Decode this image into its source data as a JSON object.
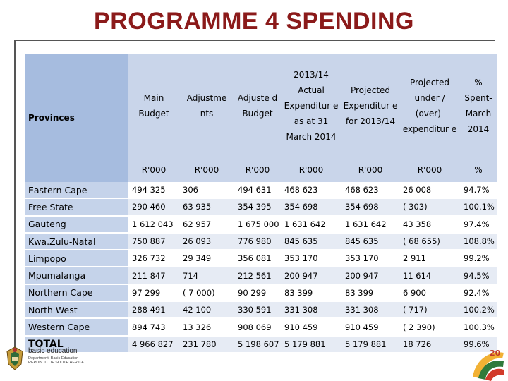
{
  "title": "PROGRAMME 4 SPENDING",
  "table": {
    "header": {
      "provinces": "Provinces",
      "year": "2013/14",
      "columns": [
        {
          "label": "Main Budget",
          "unit": "R'000"
        },
        {
          "label": "Adjustme nts",
          "unit": "R'000"
        },
        {
          "label": "Adjuste d Budget",
          "unit": "R'000"
        },
        {
          "label": "Actual Expenditur e as at 31 March 2014",
          "unit": "R'000"
        },
        {
          "label": "Projected Expenditur e for 2013/14",
          "unit": "R'000"
        },
        {
          "label": "Projected under / (over)- expenditur e",
          "unit": "R'000"
        },
        {
          "label": "% Spent- March 2014",
          "unit": "%"
        }
      ]
    },
    "rows": [
      {
        "province": "Eastern Cape",
        "values": [
          "494 325",
          "306",
          "494 631",
          "468 623",
          "468 623",
          "26 008",
          "94.7%"
        ]
      },
      {
        "province": "Free State",
        "values": [
          "290 460",
          "63 935",
          "354 395",
          "354 698",
          "354 698",
          "( 303)",
          "100.1%"
        ]
      },
      {
        "province": "Gauteng",
        "values": [
          "1 612 043",
          "62 957",
          "1 675 000",
          "1 631 642",
          "1 631 642",
          "43 358",
          "97.4%"
        ]
      },
      {
        "province": "Kwa.Zulu-Natal",
        "values": [
          "750 887",
          "26 093",
          "776 980",
          "845 635",
          "845 635",
          "( 68 655)",
          "108.8%"
        ]
      },
      {
        "province": "Limpopo",
        "values": [
          "326 732",
          "29 349",
          "356 081",
          "353 170",
          "353 170",
          "2 911",
          "99.2%"
        ]
      },
      {
        "province": "Mpumalanga",
        "values": [
          "211 847",
          "714",
          "212 561",
          "200 947",
          "200 947",
          "11 614",
          "94.5%"
        ]
      },
      {
        "province": "Northern Cape",
        "values": [
          "97 299",
          "( 7 000)",
          "90 299",
          "83 399",
          "83 399",
          "6 900",
          "92.4%"
        ]
      },
      {
        "province": "North West",
        "values": [
          "288 491",
          "42 100",
          "330 591",
          "331 308",
          "331 308",
          "( 717)",
          "100.2%"
        ]
      },
      {
        "province": "Western Cape",
        "values": [
          "894 743",
          "13 326",
          "908 069",
          "910 459",
          "910 459",
          "( 2 390)",
          "100.3%"
        ]
      }
    ],
    "total": {
      "province": "TOTAL",
      "values": [
        "4 966 827",
        "231 780",
        "5 198 607",
        "5 179 881",
        "5 179 881",
        "18 726",
        "99.6%"
      ]
    }
  },
  "logo": {
    "line1": "basic education",
    "line2": "Department: Basic Education REPUBLIC OF SOUTH AFRICA",
    "icon": "coat-of-arms-icon"
  },
  "badge": {
    "icon": "anniversary-badge-icon",
    "text": "20"
  }
}
